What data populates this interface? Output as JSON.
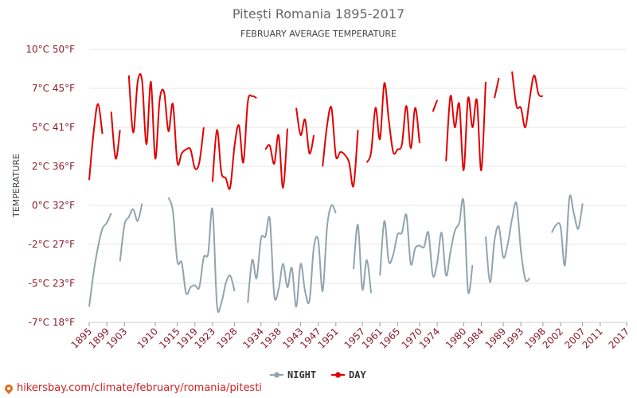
{
  "chart_data": {
    "type": "line",
    "title": "Pitești Romania 1895-2017",
    "subtitle": "FEBRUARY AVERAGE TEMPERATURE",
    "ylabel": "TEMPERATURE",
    "ylim": [
      -7,
      10
    ],
    "y_ticks": [
      {
        "value": 10,
        "label": "10°C 50°F"
      },
      {
        "value": 7,
        "label": "7°C 45°F"
      },
      {
        "value": 5,
        "label": "5°C 41°F"
      },
      {
        "value": 2,
        "label": "2°C 36°F"
      },
      {
        "value": 0,
        "label": "0°C 32°F"
      },
      {
        "value": -2,
        "label": "-2°C 27°F"
      },
      {
        "value": -5,
        "label": "-5°C 23°F"
      },
      {
        "value": -7,
        "label": "-7°C 18°F"
      }
    ],
    "xlim": [
      1895,
      2017
    ],
    "x_ticks": [
      1895,
      1899,
      1903,
      1910,
      1915,
      1919,
      1923,
      1928,
      1934,
      1938,
      1943,
      1947,
      1951,
      1957,
      1961,
      1965,
      1970,
      1974,
      1980,
      1984,
      1989,
      1993,
      1998,
      2002,
      2007,
      2011,
      2017
    ],
    "grid": "horizontal",
    "legend_position": "bottom",
    "series": [
      {
        "name": "NIGHT",
        "color": "#90a4ae",
        "points": [
          [
            1895,
            -6.2
          ],
          [
            1896,
            -4.2
          ],
          [
            1897,
            -2.2
          ],
          [
            1898,
            -1.2
          ],
          [
            1899,
            -0.9
          ],
          [
            1900,
            -0.4
          ],
          null,
          [
            1902,
            -3.3
          ],
          [
            1903,
            -1.0
          ],
          [
            1904,
            -0.6
          ],
          [
            1905,
            -0.2
          ],
          [
            1906,
            -0.8
          ],
          [
            1907,
            0.1
          ],
          null,
          [
            1913,
            0.4
          ],
          [
            1914,
            -0.3
          ],
          [
            1915,
            -3.3
          ],
          [
            1916,
            -3.4
          ],
          [
            1917,
            -5.5
          ],
          [
            1918,
            -5.2
          ],
          [
            1919,
            -5.1
          ],
          [
            1920,
            -5.2
          ],
          [
            1921,
            -3.0
          ],
          [
            1922,
            -2.7
          ],
          [
            1923,
            -0.2
          ],
          [
            1924,
            -6.1
          ],
          [
            1925,
            -6.0
          ],
          [
            1926,
            -5.0
          ],
          [
            1927,
            -4.4
          ],
          [
            1928,
            -5.4
          ],
          null,
          [
            1931,
            -6.0
          ],
          [
            1932,
            -3.2
          ],
          [
            1933,
            -4.6
          ],
          [
            1934,
            -1.7
          ],
          [
            1935,
            -1.6
          ],
          [
            1936,
            -0.7
          ],
          [
            1937,
            -5.6
          ],
          [
            1938,
            -5.3
          ],
          [
            1939,
            -3.5
          ],
          [
            1940,
            -5.2
          ],
          [
            1941,
            -3.8
          ],
          [
            1942,
            -6.2
          ],
          [
            1943,
            -3.5
          ],
          [
            1944,
            -5.4
          ],
          [
            1945,
            -5.9
          ],
          [
            1946,
            -2.2
          ],
          [
            1947,
            -1.8
          ],
          [
            1948,
            -5.4
          ],
          [
            1949,
            -1.1
          ],
          [
            1950,
            0.0
          ],
          [
            1951,
            -0.4
          ],
          null,
          [
            1955,
            -3.9
          ],
          [
            1956,
            -1.0
          ],
          [
            1957,
            -5.3
          ],
          [
            1958,
            -3.2
          ],
          [
            1959,
            -5.5
          ],
          null,
          [
            1961,
            -4.4
          ],
          [
            1962,
            -0.8
          ],
          [
            1963,
            -3.3
          ],
          [
            1964,
            -2.8
          ],
          [
            1965,
            -1.5
          ],
          [
            1966,
            -1.4
          ],
          [
            1967,
            -0.5
          ],
          [
            1968,
            -3.5
          ],
          [
            1969,
            -2.3
          ],
          [
            1970,
            -2.1
          ],
          [
            1971,
            -2.2
          ],
          [
            1972,
            -1.4
          ],
          [
            1973,
            -4.4
          ],
          [
            1974,
            -3.4
          ],
          [
            1975,
            -1.4
          ],
          [
            1976,
            -4.4
          ],
          [
            1977,
            -2.6
          ],
          [
            1978,
            -1.3
          ],
          [
            1979,
            -0.9
          ],
          [
            1980,
            0.2
          ],
          [
            1981,
            -5.4
          ],
          [
            1982,
            -3.6
          ],
          null,
          [
            1985,
            -1.6
          ],
          [
            1986,
            -4.9
          ],
          [
            1987,
            -1.8
          ],
          [
            1988,
            -1.1
          ],
          [
            1989,
            -3.0
          ],
          [
            1990,
            -2.0
          ],
          [
            1991,
            -0.7
          ],
          [
            1992,
            0.1
          ],
          [
            1993,
            -2.5
          ],
          [
            1994,
            -4.7
          ],
          [
            1995,
            -4.6
          ],
          null,
          [
            2000,
            -1.4
          ],
          [
            2001,
            -1.0
          ],
          [
            2002,
            -1.1
          ],
          [
            2003,
            -3.6
          ],
          [
            2004,
            0.4
          ],
          [
            2005,
            -0.4
          ],
          [
            2006,
            -1.2
          ],
          [
            2007,
            0.1
          ]
        ]
      },
      {
        "name": "DAY",
        "color": "#e00000",
        "points": [
          [
            1895,
            1.3
          ],
          [
            1896,
            4.6
          ],
          [
            1897,
            6.2
          ],
          [
            1898,
            4.5
          ],
          null,
          [
            1900,
            5.8
          ],
          [
            1901,
            2.6
          ],
          [
            1902,
            4.8
          ],
          null,
          [
            1904,
            8.0
          ],
          [
            1905,
            4.6
          ],
          [
            1906,
            7.5
          ],
          [
            1907,
            7.6
          ],
          [
            1908,
            3.7
          ],
          [
            1909,
            7.5
          ],
          [
            1910,
            2.6
          ],
          [
            1911,
            6.4
          ],
          [
            1912,
            6.8
          ],
          [
            1913,
            4.7
          ],
          [
            1914,
            6.2
          ],
          [
            1915,
            2.3
          ],
          [
            1916,
            3.0
          ],
          [
            1917,
            3.3
          ],
          [
            1918,
            3.3
          ],
          [
            1919,
            1.9
          ],
          [
            1920,
            2.3
          ],
          [
            1921,
            5.0
          ],
          null,
          [
            1923,
            1.2
          ],
          [
            1924,
            4.8
          ],
          [
            1925,
            1.7
          ],
          [
            1926,
            1.4
          ],
          [
            1927,
            0.9
          ],
          [
            1928,
            3.6
          ],
          [
            1929,
            5.1
          ],
          [
            1930,
            2.3
          ],
          [
            1931,
            6.3
          ],
          [
            1932,
            6.6
          ],
          [
            1933,
            6.5
          ],
          null,
          [
            1935,
            3.3
          ],
          [
            1936,
            3.6
          ],
          [
            1937,
            2.2
          ],
          [
            1938,
            4.4
          ],
          [
            1939,
            0.9
          ],
          [
            1940,
            4.9
          ],
          null,
          [
            1942,
            6.0
          ],
          [
            1943,
            4.4
          ],
          [
            1944,
            5.4
          ],
          [
            1945,
            3.0
          ],
          [
            1946,
            4.4
          ],
          null,
          [
            1948,
            2.0
          ],
          [
            1949,
            5.1
          ],
          [
            1950,
            6.0
          ],
          [
            1951,
            2.8
          ],
          [
            1952,
            3.1
          ],
          [
            1953,
            2.9
          ],
          [
            1954,
            2.3
          ],
          [
            1955,
            1.0
          ],
          [
            1956,
            4.8
          ],
          null,
          [
            1958,
            2.3
          ],
          [
            1959,
            3.1
          ],
          [
            1960,
            6.0
          ],
          [
            1961,
            4.1
          ],
          [
            1962,
            7.4
          ],
          [
            1963,
            5.4
          ],
          [
            1964,
            3.1
          ],
          [
            1965,
            3.3
          ],
          [
            1966,
            3.7
          ],
          [
            1967,
            6.1
          ],
          [
            1968,
            3.4
          ],
          [
            1969,
            6.0
          ],
          [
            1970,
            3.8
          ],
          null,
          [
            1973,
            5.8
          ],
          [
            1974,
            6.4
          ],
          null,
          [
            1976,
            2.4
          ],
          [
            1977,
            6.6
          ],
          [
            1978,
            5.0
          ],
          [
            1979,
            6.2
          ],
          [
            1980,
            1.8
          ],
          [
            1981,
            6.5
          ],
          [
            1982,
            5.0
          ],
          [
            1983,
            6.4
          ],
          [
            1984,
            1.8
          ],
          [
            1985,
            7.5
          ],
          null,
          [
            1987,
            6.5
          ],
          [
            1988,
            7.8
          ],
          null,
          [
            1991,
            8.3
          ],
          [
            1992,
            6.1
          ],
          [
            1993,
            6.0
          ],
          [
            1994,
            5.0
          ],
          [
            1995,
            6.5
          ],
          [
            1996,
            8.0
          ],
          [
            1997,
            6.7
          ],
          [
            1998,
            6.6
          ]
        ]
      }
    ]
  },
  "legend": {
    "night_label": "NIGHT",
    "day_label": "DAY"
  },
  "footer": {
    "text": "hikersbay.com/climate/february/romania/pitesti",
    "color": "#cc2222"
  }
}
